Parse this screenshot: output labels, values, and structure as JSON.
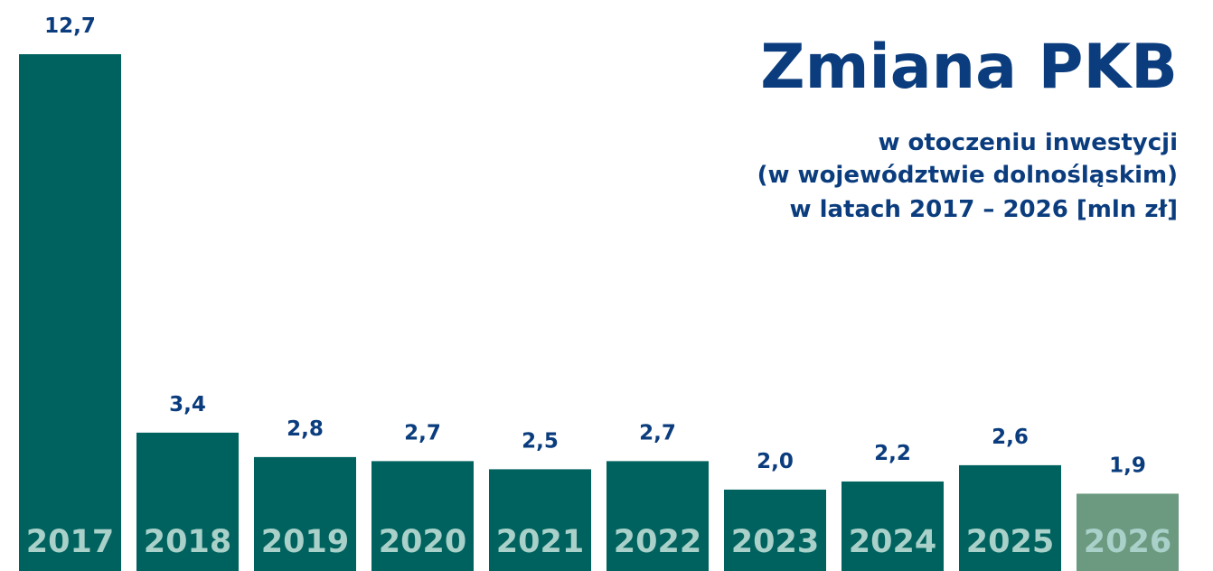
{
  "chart_data": {
    "type": "bar",
    "title": "Zmiana PKB",
    "subtitle": [
      "w otoczeniu inwestycji",
      "(w województwie dolnośląskim)",
      "w latach 2017 – 2026 [mln zł]"
    ],
    "categories": [
      "2017",
      "2018",
      "2019",
      "2020",
      "2021",
      "2022",
      "2023",
      "2024",
      "2025",
      "2026"
    ],
    "values": [
      12.7,
      3.4,
      2.8,
      2.7,
      2.5,
      2.7,
      2.0,
      2.2,
      2.6,
      1.9
    ],
    "value_labels": [
      "12,7",
      "3,4",
      "2,8",
      "2,7",
      "2,5",
      "2,7",
      "2,0",
      "2,2",
      "2,6",
      "1,9"
    ],
    "colors": [
      "#00625e",
      "#00625e",
      "#00625e",
      "#00625e",
      "#00625e",
      "#00625e",
      "#00625e",
      "#00625e",
      "#00625e",
      "#6b9a80"
    ]
  }
}
